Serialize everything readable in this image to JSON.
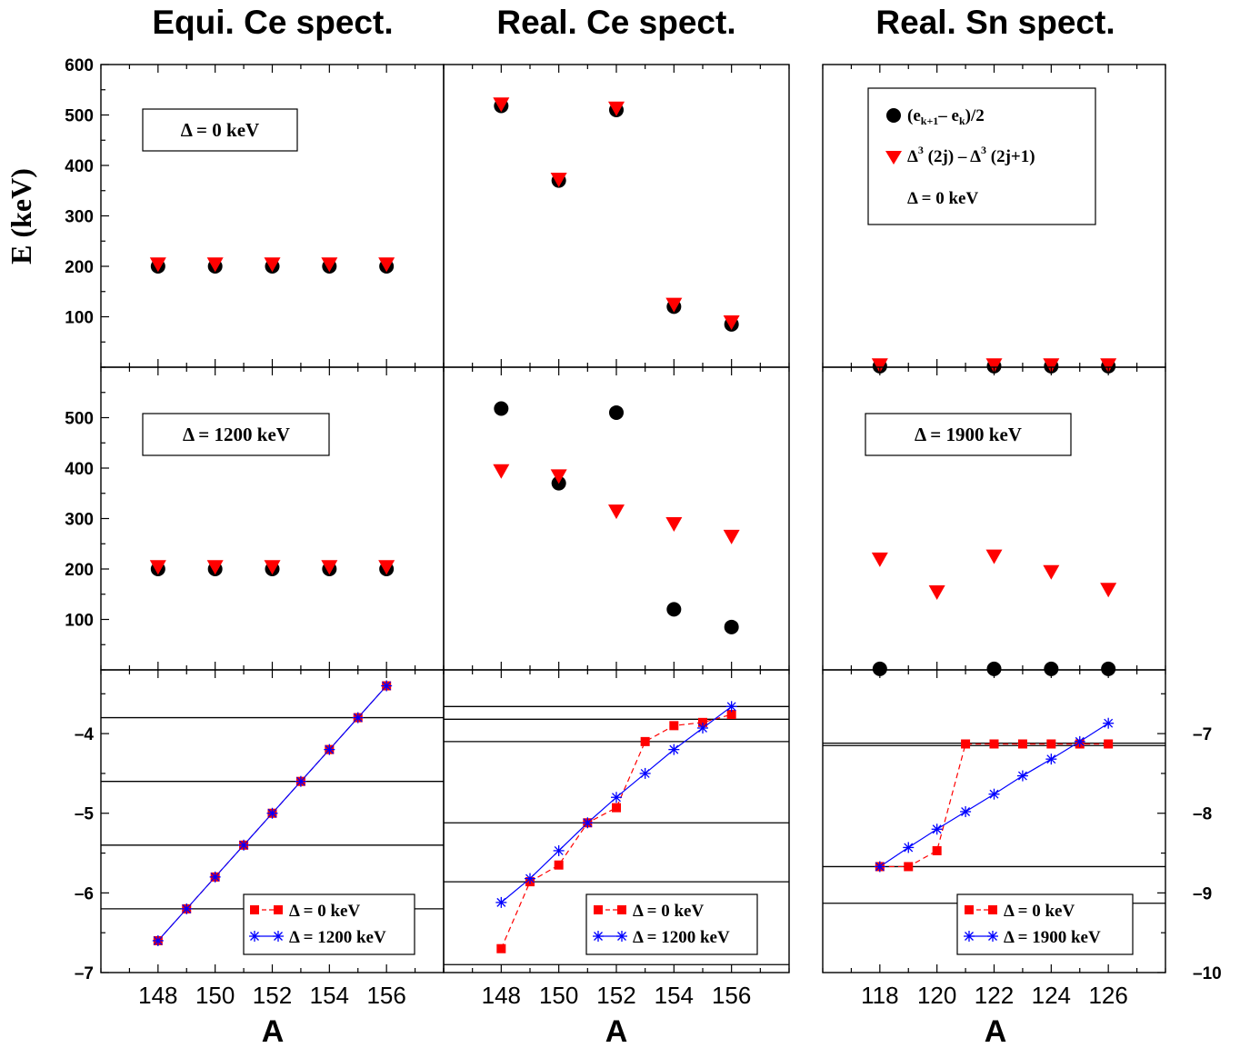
{
  "figure": {
    "ylabel": "E  (keV)",
    "col_titles": [
      "Equi. Ce spect.",
      "Real. Ce spect.",
      "Real. Sn spect."
    ],
    "xlabel": "A",
    "top_legend": {
      "circle_label": "(e_{k+1}– e_k)/2",
      "triangle_label": "Δ^3 (2j) – Δ^3 (2j+1)",
      "delta_label": "Δ = 0 keV"
    },
    "boxes": {
      "ce_equi_top": "Δ = 0 keV",
      "ce_equi_mid": "Δ = 1200 keV",
      "sn_mid": "Δ = 1900 keV"
    },
    "legends": {
      "ce_equi": [
        "Δ = 0 keV",
        "Δ = 1200 keV"
      ],
      "ce_real": [
        "Δ = 0 keV",
        "Δ = 1200 keV"
      ],
      "sn_real": [
        "Δ = 0 keV",
        "Δ = 1900 keV"
      ]
    },
    "colors": {
      "circle": "#000000",
      "triangle": "#ff0000",
      "square": "#ff0000",
      "star": "#0000ff",
      "line_star": "#0000ff"
    }
  },
  "chart_data": [
    {
      "type": "scatter",
      "panel": "row1-col1",
      "x_ticks": [
        148,
        150,
        152,
        154,
        156
      ],
      "xlim": [
        146,
        158
      ],
      "ylim": [
        0,
        600
      ],
      "y_ticks": [
        100,
        200,
        300,
        400,
        500,
        600
      ],
      "series": [
        {
          "name": "(e_{k+1}– e_k)/2",
          "x": [
            148,
            150,
            152,
            154,
            156
          ],
          "y": [
            200,
            200,
            200,
            200,
            200
          ]
        },
        {
          "name": "Δ^3 (2j) – Δ^3 (2j+1)",
          "x": [
            148,
            150,
            152,
            154,
            156
          ],
          "y": [
            205,
            205,
            205,
            205,
            205
          ]
        }
      ]
    },
    {
      "type": "scatter",
      "panel": "row1-col2",
      "x_ticks": [
        148,
        150,
        152,
        154,
        156
      ],
      "xlim": [
        146,
        158
      ],
      "ylim": [
        0,
        600
      ],
      "series": [
        {
          "name": "(e_{k+1}– e_k)/2",
          "x": [
            148,
            150,
            152,
            154,
            156
          ],
          "y": [
            518,
            370,
            510,
            120,
            85
          ]
        },
        {
          "name": "Δ^3 (2j) – Δ^3 (2j+1)",
          "x": [
            148,
            150,
            152,
            154,
            156
          ],
          "y": [
            522,
            373,
            514,
            125,
            90
          ]
        }
      ]
    },
    {
      "type": "scatter",
      "panel": "row1-col3",
      "x_ticks": [
        118,
        120,
        122,
        124,
        126
      ],
      "xlim": [
        116,
        128
      ],
      "ylim": [
        0,
        600
      ],
      "series": [
        {
          "name": "(e_{k+1}– e_k)/2",
          "x": [
            118,
            122,
            124,
            126
          ],
          "y": [
            2,
            2,
            2,
            2
          ]
        },
        {
          "name": "Δ^3 (2j) – Δ^3 (2j+1)",
          "x": [
            118,
            122,
            124,
            126
          ],
          "y": [
            5,
            5,
            5,
            5
          ]
        }
      ]
    },
    {
      "type": "scatter",
      "panel": "row2-col1",
      "x_ticks": [
        148,
        150,
        152,
        154,
        156
      ],
      "xlim": [
        146,
        158
      ],
      "ylim": [
        0,
        600
      ],
      "y_ticks": [
        100,
        200,
        300,
        400,
        500
      ],
      "series": [
        {
          "name": "(e_{k+1}– e_k)/2",
          "x": [
            148,
            150,
            152,
            154,
            156
          ],
          "y": [
            200,
            200,
            200,
            200,
            200
          ]
        },
        {
          "name": "Δ^3 (2j) – Δ^3 (2j+1)",
          "x": [
            148,
            150,
            152,
            154,
            156
          ],
          "y": [
            205,
            205,
            205,
            205,
            205
          ]
        }
      ]
    },
    {
      "type": "scatter",
      "panel": "row2-col2",
      "x_ticks": [
        148,
        150,
        152,
        154,
        156
      ],
      "xlim": [
        146,
        158
      ],
      "ylim": [
        0,
        600
      ],
      "series": [
        {
          "name": "(e_{k+1}– e_k)/2",
          "x": [
            148,
            150,
            152,
            154,
            156
          ],
          "y": [
            518,
            370,
            510,
            120,
            85
          ]
        },
        {
          "name": "Δ^3 (2j) – Δ^3 (2j+1)",
          "x": [
            148,
            150,
            152,
            154,
            156
          ],
          "y": [
            395,
            385,
            315,
            290,
            265
          ]
        }
      ]
    },
    {
      "type": "scatter",
      "panel": "row2-col3",
      "x_ticks": [
        118,
        120,
        122,
        124,
        126
      ],
      "xlim": [
        116,
        128
      ],
      "ylim": [
        0,
        600
      ],
      "series": [
        {
          "name": "(e_{k+1}– e_k)/2",
          "x": [
            118,
            122,
            124,
            126
          ],
          "y": [
            2,
            2,
            2,
            2
          ]
        },
        {
          "name": "Δ^3 (2j) – Δ^3 (2j+1)",
          "x": [
            118,
            120,
            122,
            124,
            126
          ],
          "y": [
            220,
            155,
            226,
            195,
            160
          ]
        }
      ]
    },
    {
      "type": "line",
      "panel": "row3-col1",
      "x_ticks": [
        148,
        150,
        152,
        154,
        156
      ],
      "xlim": [
        146,
        158
      ],
      "ylim": [
        -7,
        -3.2
      ],
      "y_ticks": [
        -7,
        -6,
        -5,
        -4
      ],
      "hlines": [
        -3.8,
        -4.6,
        -5.4,
        -6.2
      ],
      "series": [
        {
          "name": "Δ = 0 keV",
          "marker": "square",
          "x": [
            148,
            149,
            150,
            151,
            152,
            153,
            154,
            155,
            156
          ],
          "y": [
            -6.6,
            -6.2,
            -5.8,
            -5.4,
            -5.0,
            -4.6,
            -4.2,
            -3.8,
            -3.4
          ]
        },
        {
          "name": "Δ = 1200 keV",
          "marker": "star",
          "x": [
            148,
            149,
            150,
            151,
            152,
            153,
            154,
            155,
            156
          ],
          "y": [
            -6.6,
            -6.2,
            -5.8,
            -5.4,
            -5.0,
            -4.6,
            -4.2,
            -3.8,
            -3.4
          ]
        }
      ]
    },
    {
      "type": "line",
      "panel": "row3-col2",
      "x_ticks": [
        148,
        150,
        152,
        154,
        156
      ],
      "xlim": [
        146,
        158
      ],
      "ylim": [
        -7,
        -3.2
      ],
      "hlines": [
        -3.66,
        -3.82,
        -4.1,
        -5.12,
        -5.86,
        -6.9
      ],
      "series": [
        {
          "name": "Δ = 0 keV",
          "marker": "square",
          "x": [
            148,
            149,
            150,
            151,
            152,
            153,
            154,
            155,
            156
          ],
          "y": [
            -6.7,
            -5.86,
            -5.65,
            -5.12,
            -4.93,
            -4.1,
            -3.9,
            -3.86,
            -3.76
          ]
        },
        {
          "name": "Δ = 1200 keV",
          "marker": "star",
          "x": [
            148,
            149,
            150,
            151,
            152,
            153,
            154,
            155,
            156
          ],
          "y": [
            -6.12,
            -5.82,
            -5.47,
            -5.12,
            -4.8,
            -4.5,
            -4.2,
            -3.93,
            -3.66
          ]
        }
      ]
    },
    {
      "type": "line",
      "panel": "row3-col3",
      "x_ticks": [
        118,
        120,
        122,
        124,
        126
      ],
      "xlim": [
        116,
        128
      ],
      "ylim": [
        -10,
        -6.2
      ],
      "y_ticks": [
        -10,
        -9,
        -8,
        -7
      ],
      "hlines": [
        -7.12,
        -7.15,
        -8.67,
        -9.13
      ],
      "series": [
        {
          "name": "Δ = 0 keV",
          "marker": "square",
          "x": [
            118,
            119,
            120,
            121,
            122,
            123,
            124,
            125,
            126
          ],
          "y": [
            -8.67,
            -8.67,
            -8.47,
            -7.13,
            -7.13,
            -7.13,
            -7.13,
            -7.13,
            -7.13
          ]
        },
        {
          "name": "Δ = 1900 keV",
          "marker": "star",
          "x": [
            118,
            119,
            120,
            121,
            122,
            123,
            124,
            125,
            126
          ],
          "y": [
            -8.67,
            -8.43,
            -8.2,
            -7.98,
            -7.76,
            -7.53,
            -7.32,
            -7.1,
            -6.87
          ]
        }
      ]
    }
  ]
}
